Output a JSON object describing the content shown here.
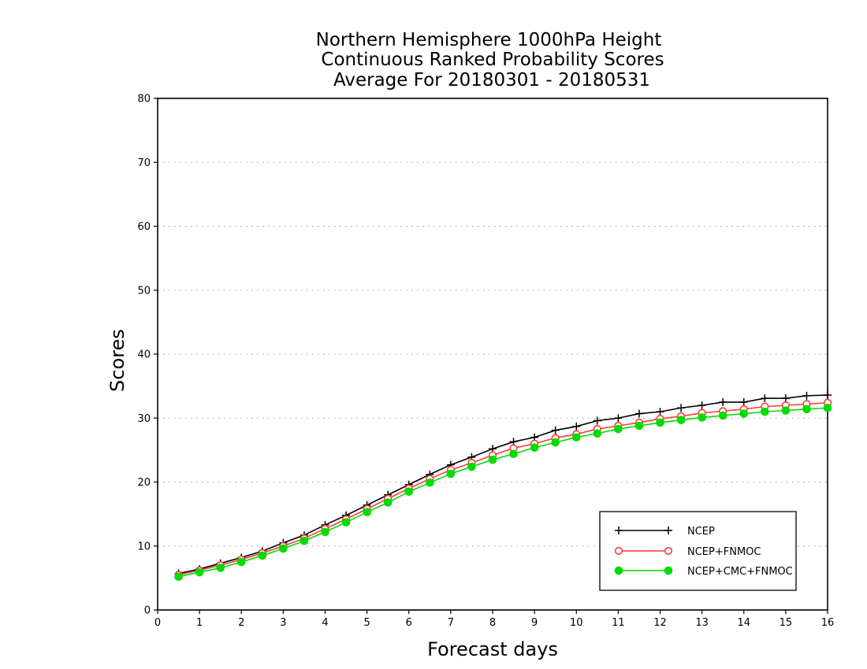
{
  "chart_data": {
    "type": "line",
    "title_lines": [
      "Northern Hemisphere 1000hPa Height",
      "Continuous Ranked Probability Scores",
      "Average For 20180301 - 20180531"
    ],
    "xlabel": "Forecast days",
    "ylabel": "Scores",
    "xlim": [
      0,
      16
    ],
    "ylim": [
      0,
      80
    ],
    "x_ticks": [
      "0",
      "1",
      "2",
      "3",
      "4",
      "5",
      "6",
      "7",
      "8",
      "9",
      "10",
      "11",
      "12",
      "13",
      "14",
      "15",
      "16"
    ],
    "y_ticks": [
      "0",
      "10",
      "20",
      "30",
      "40",
      "50",
      "60",
      "70",
      "80"
    ],
    "grid": "horizontal dotted",
    "legend_position": "bottom-right",
    "x": [
      0.5,
      1,
      1.5,
      2,
      2.5,
      3,
      3.5,
      4,
      4.5,
      5,
      5.5,
      6,
      6.5,
      7,
      7.5,
      8,
      8.5,
      9,
      9.5,
      10,
      10.5,
      11,
      11.5,
      12,
      12.5,
      13,
      13.5,
      14,
      14.5,
      15,
      15.5,
      16
    ],
    "series": [
      {
        "name": "NCEP",
        "color": "#000000",
        "marker": "plus",
        "values": [
          5.7,
          6.4,
          7.3,
          8.2,
          9.2,
          10.5,
          11.7,
          13.3,
          14.8,
          16.4,
          18.0,
          19.6,
          21.2,
          22.7,
          23.9,
          25.2,
          26.3,
          27.0,
          28.1,
          28.7,
          29.6,
          30.0,
          30.7,
          31.0,
          31.6,
          32.0,
          32.5,
          32.5,
          33.1,
          33.1,
          33.5,
          33.6
        ]
      },
      {
        "name": "NCEP+FNMOC",
        "color": "#ff3c3c",
        "marker": "open-circle",
        "values": [
          5.5,
          6.2,
          7.0,
          7.9,
          8.9,
          10.0,
          11.2,
          12.7,
          14.2,
          15.8,
          17.4,
          19.0,
          20.5,
          21.9,
          23.0,
          24.2,
          25.3,
          26.0,
          26.9,
          27.5,
          28.3,
          28.8,
          29.3,
          29.9,
          30.3,
          30.8,
          31.1,
          31.4,
          31.8,
          32.0,
          32.2,
          32.4
        ]
      },
      {
        "name": "NCEP+CMC+FNMOC",
        "color": "#00dc00",
        "marker": "filled-circle",
        "values": [
          5.2,
          5.9,
          6.6,
          7.5,
          8.5,
          9.6,
          10.8,
          12.2,
          13.7,
          15.3,
          16.8,
          18.5,
          19.9,
          21.3,
          22.4,
          23.5,
          24.4,
          25.4,
          26.2,
          27.0,
          27.6,
          28.3,
          28.8,
          29.3,
          29.7,
          30.1,
          30.4,
          30.7,
          31.0,
          31.2,
          31.4,
          31.6
        ]
      }
    ]
  }
}
